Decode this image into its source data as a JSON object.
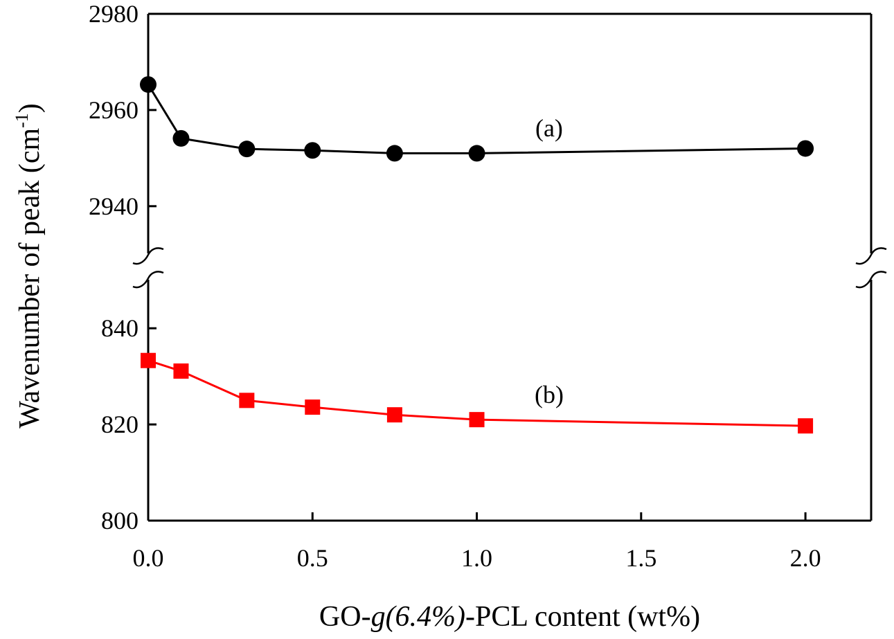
{
  "chart_data": {
    "type": "line",
    "ylabel_main": "Wavenumber of peak (cm",
    "ylabel_sup": "-1",
    "ylabel_close": ")",
    "xlabel_pre": "GO-",
    "xlabel_italic": "g(6.4%)",
    "xlabel_post": "-PCL content (wt%)",
    "x_ticks": [
      0.0,
      0.5,
      1.0,
      1.5,
      2.0
    ],
    "x_tick_labels": [
      "0.0",
      "0.5",
      "1.0",
      "1.5",
      "2.0"
    ],
    "xlim": [
      0,
      2.2
    ],
    "y_axis_break": true,
    "y_segments": [
      {
        "ylim": [
          2925,
          2980
        ],
        "ticks": [
          2940,
          2960,
          2980
        ],
        "tick_labels": [
          "2940",
          "2960",
          "2980"
        ]
      },
      {
        "ylim": [
          800,
          855
        ],
        "ticks": [
          800,
          820,
          840
        ],
        "tick_labels": [
          "800",
          "820",
          "840"
        ]
      }
    ],
    "series": [
      {
        "label": "(a)",
        "marker": "circle",
        "color": "#000000",
        "segment": 0,
        "x": [
          0.0,
          0.1,
          0.3,
          0.5,
          0.75,
          1.0,
          2.0
        ],
        "y": [
          2965.3,
          2954.1,
          2951.9,
          2951.6,
          2951.0,
          2951.0,
          2952.0
        ]
      },
      {
        "label": "(b)",
        "marker": "square",
        "color": "#ff0000",
        "segment": 1,
        "x": [
          0.0,
          0.1,
          0.3,
          0.5,
          0.75,
          1.0,
          2.0
        ],
        "y": [
          833.3,
          831.1,
          825.0,
          823.6,
          822.0,
          821.0,
          819.7
        ]
      }
    ],
    "grid": false
  }
}
